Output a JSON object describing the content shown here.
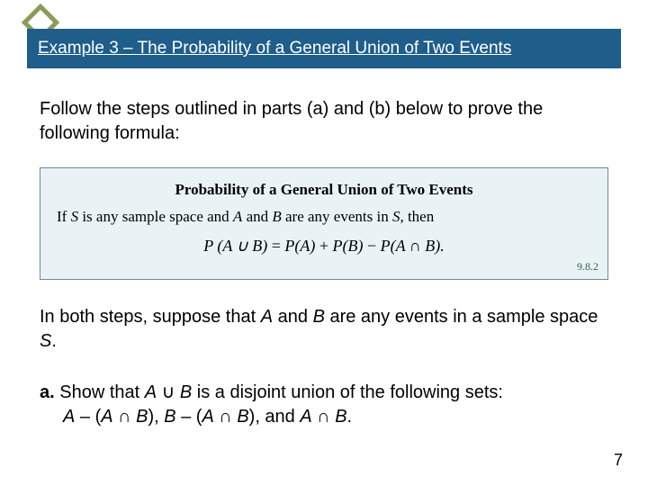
{
  "title": "Example 3 – The Probability of a General Union of Two Events",
  "intro": "Follow the steps outlined in parts (a) and (b) below to prove the following formula:",
  "box": {
    "heading": "Probability of a General Union of Two Events",
    "premise_pre": "If ",
    "premise_S": "S",
    "premise_mid1": " is any sample space and ",
    "premise_A": "A",
    "premise_and": " and ",
    "premise_B": "B",
    "premise_post": " are any events in ",
    "premise_S2": "S",
    "premise_end": ", then",
    "eq_lhs": "P (A ∪ B)",
    "eq_eq": " = ",
    "eq_pa": "P(A)",
    "eq_plus": " + ",
    "eq_pb": "P(B)",
    "eq_minus": " − ",
    "eq_pab": "P(A ∩ B).",
    "tag": "9.8.2"
  },
  "p2_a": "In both steps, suppose that ",
  "p2_A": "A",
  "p2_and": " and ",
  "p2_B": "B",
  "p2_b": " are any events in a sample space ",
  "p2_S": "S",
  "p2_end": ".",
  "qa": {
    "label": "a.",
    "t1": " Show that ",
    "A1": "A",
    "u": " ∪ ",
    "B1": "B",
    "t2": " is a disjoint union of the following sets:",
    "line2_A": "A",
    "line2_dash1": " – (",
    "line2_Ai": "A",
    "line2_cap1": " ∩ ",
    "line2_Bi": "B",
    "line2_close1": "), ",
    "line2_B": "B",
    "line2_dash2": " – (",
    "line2_Ai2": "A",
    "line2_cap2": " ∩ ",
    "line2_Bi2": "B",
    "line2_close2": "), and ",
    "line2_Af": "A",
    "line2_capf": " ∩ ",
    "line2_Bf": "B",
    "line2_end": "."
  },
  "page": "7",
  "colors": {
    "titlebar": "#1f5d8a",
    "diamond_border": "#8a9b5b",
    "box_bg": "#e9f3f5",
    "box_border": "#6b8d9a",
    "tag_color": "#2d6b4a"
  }
}
